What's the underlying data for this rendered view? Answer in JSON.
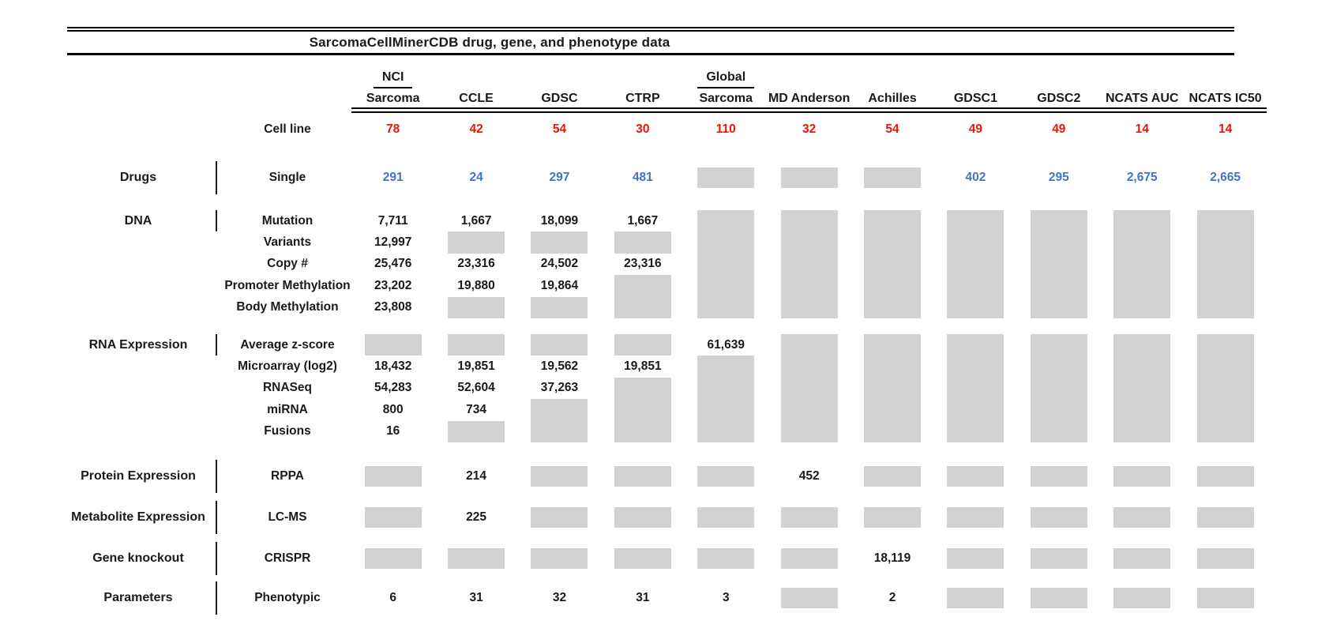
{
  "chart_data": {
    "type": "table",
    "title": "SarcomaCellMinerCDB drug, gene, and phenotype data",
    "columns": [
      {
        "top": "NCI",
        "name": "Sarcoma"
      },
      {
        "top": "",
        "name": "CCLE"
      },
      {
        "top": "",
        "name": "GDSC"
      },
      {
        "top": "",
        "name": "CTRP"
      },
      {
        "top": "Global",
        "name": "Sarcoma"
      },
      {
        "top": "",
        "name": "MD Anderson"
      },
      {
        "top": "",
        "name": "Achilles"
      },
      {
        "top": "",
        "name": "GDSC1"
      },
      {
        "top": "",
        "name": "GDSC2"
      },
      {
        "top": "",
        "name": "NCATS AUC"
      },
      {
        "top": "",
        "name": "NCATS IC50"
      }
    ],
    "cell_line": {
      "label": "Cell line",
      "values": [
        "78",
        "42",
        "54",
        "30",
        "110",
        "32",
        "54",
        "49",
        "49",
        "14",
        "14"
      ]
    },
    "sections": [
      {
        "label": "Drugs",
        "value_style": "blue",
        "rows": [
          {
            "label": "Single",
            "values": [
              "291",
              "24",
              "297",
              "481",
              null,
              null,
              null,
              "402",
              "295",
              "2,675",
              "2,665"
            ]
          }
        ]
      },
      {
        "label": "DNA",
        "value_style": "black",
        "rows": [
          {
            "label": "Mutation",
            "values": [
              "7,711",
              "1,667",
              "18,099",
              "1,667",
              null,
              null,
              null,
              null,
              null,
              null,
              null
            ]
          },
          {
            "label": "Variants",
            "values": [
              "12,997",
              null,
              null,
              null,
              null,
              null,
              null,
              null,
              null,
              null,
              null
            ]
          },
          {
            "label": "Copy #",
            "values": [
              "25,476",
              "23,316",
              "24,502",
              "23,316",
              null,
              null,
              null,
              null,
              null,
              null,
              null
            ]
          },
          {
            "label": "Promoter Methylation",
            "values": [
              "23,202",
              "19,880",
              "19,864",
              null,
              null,
              null,
              null,
              null,
              null,
              null,
              null
            ]
          },
          {
            "label": "Body Methylation",
            "values": [
              "23,808",
              null,
              null,
              null,
              null,
              null,
              null,
              null,
              null,
              null,
              null
            ]
          }
        ]
      },
      {
        "label": "RNA Expression",
        "value_style": "black",
        "rows": [
          {
            "label": "Average z-score",
            "values": [
              null,
              null,
              null,
              null,
              "61,639",
              null,
              null,
              null,
              null,
              null,
              null
            ]
          },
          {
            "label": "Microarray (log2)",
            "values": [
              "18,432",
              "19,851",
              "19,562",
              "19,851",
              null,
              null,
              null,
              null,
              null,
              null,
              null
            ]
          },
          {
            "label": "RNASeq",
            "values": [
              "54,283",
              "52,604",
              "37,263",
              null,
              null,
              null,
              null,
              null,
              null,
              null,
              null
            ]
          },
          {
            "label": "miRNA",
            "values": [
              "800",
              "734",
              null,
              null,
              null,
              null,
              null,
              null,
              null,
              null,
              null
            ]
          },
          {
            "label": "Fusions",
            "values": [
              "16",
              null,
              null,
              null,
              null,
              null,
              null,
              null,
              null,
              null,
              null
            ]
          }
        ]
      },
      {
        "label": "Protein Expression",
        "value_style": "black",
        "rows": [
          {
            "label": "RPPA",
            "values": [
              null,
              "214",
              null,
              null,
              null,
              "452",
              null,
              null,
              null,
              null,
              null
            ]
          }
        ]
      },
      {
        "label": "Metabolite Expression",
        "value_style": "black",
        "rows": [
          {
            "label": "LC-MS",
            "values": [
              null,
              "225",
              null,
              null,
              null,
              null,
              null,
              null,
              null,
              null,
              null
            ]
          }
        ]
      },
      {
        "label": "Gene knockout",
        "value_style": "black",
        "rows": [
          {
            "label": "CRISPR",
            "values": [
              null,
              null,
              null,
              null,
              null,
              null,
              "18,119",
              null,
              null,
              null,
              null
            ]
          }
        ]
      },
      {
        "label": "Parameters",
        "value_style": "black",
        "rows": [
          {
            "label": "Phenotypic",
            "values": [
              "6",
              "31",
              "32",
              "31",
              "3",
              null,
              "2",
              null,
              null,
              null,
              null
            ]
          }
        ]
      }
    ],
    "colors": {
      "cell_line_count_red": "#ee1405",
      "drug_count_blue": "#4472c4",
      "missing_data_gray": "#d2d2d2"
    }
  }
}
